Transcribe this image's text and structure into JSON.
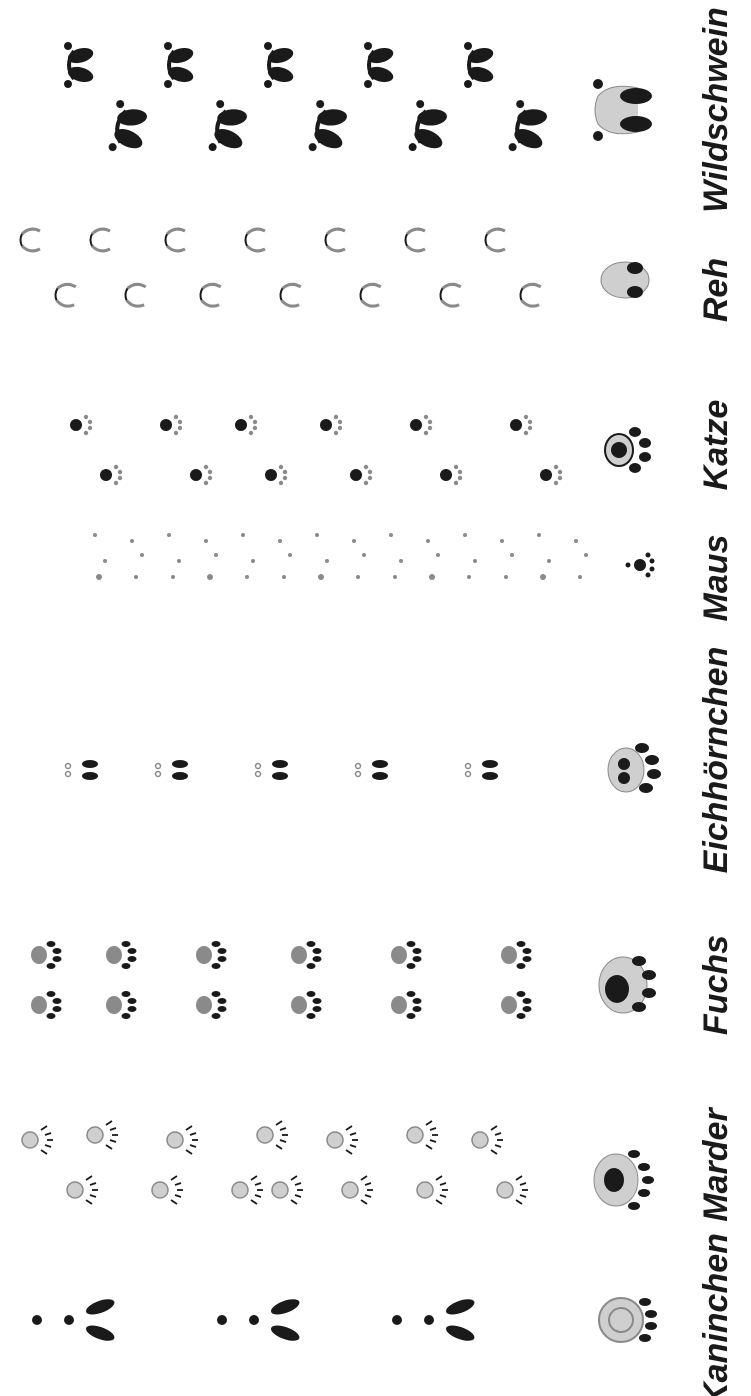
{
  "animals": [
    {
      "name": "Wildschwein",
      "track": "hoof-double"
    },
    {
      "name": "Reh",
      "track": "hoof-light"
    },
    {
      "name": "Katze",
      "track": "paw-small"
    },
    {
      "name": "Maus",
      "track": "dots"
    },
    {
      "name": "Eichhörnchen",
      "track": "pair-dots"
    },
    {
      "name": "Fuchs",
      "track": "paw-oval"
    },
    {
      "name": "Marder",
      "track": "paw-claws"
    },
    {
      "name": "Kaninchen",
      "track": "rabbit"
    }
  ],
  "colors": {
    "ink": "#1a1a1a",
    "grey": "#8a8a8a",
    "light": "#cfcfcf"
  }
}
